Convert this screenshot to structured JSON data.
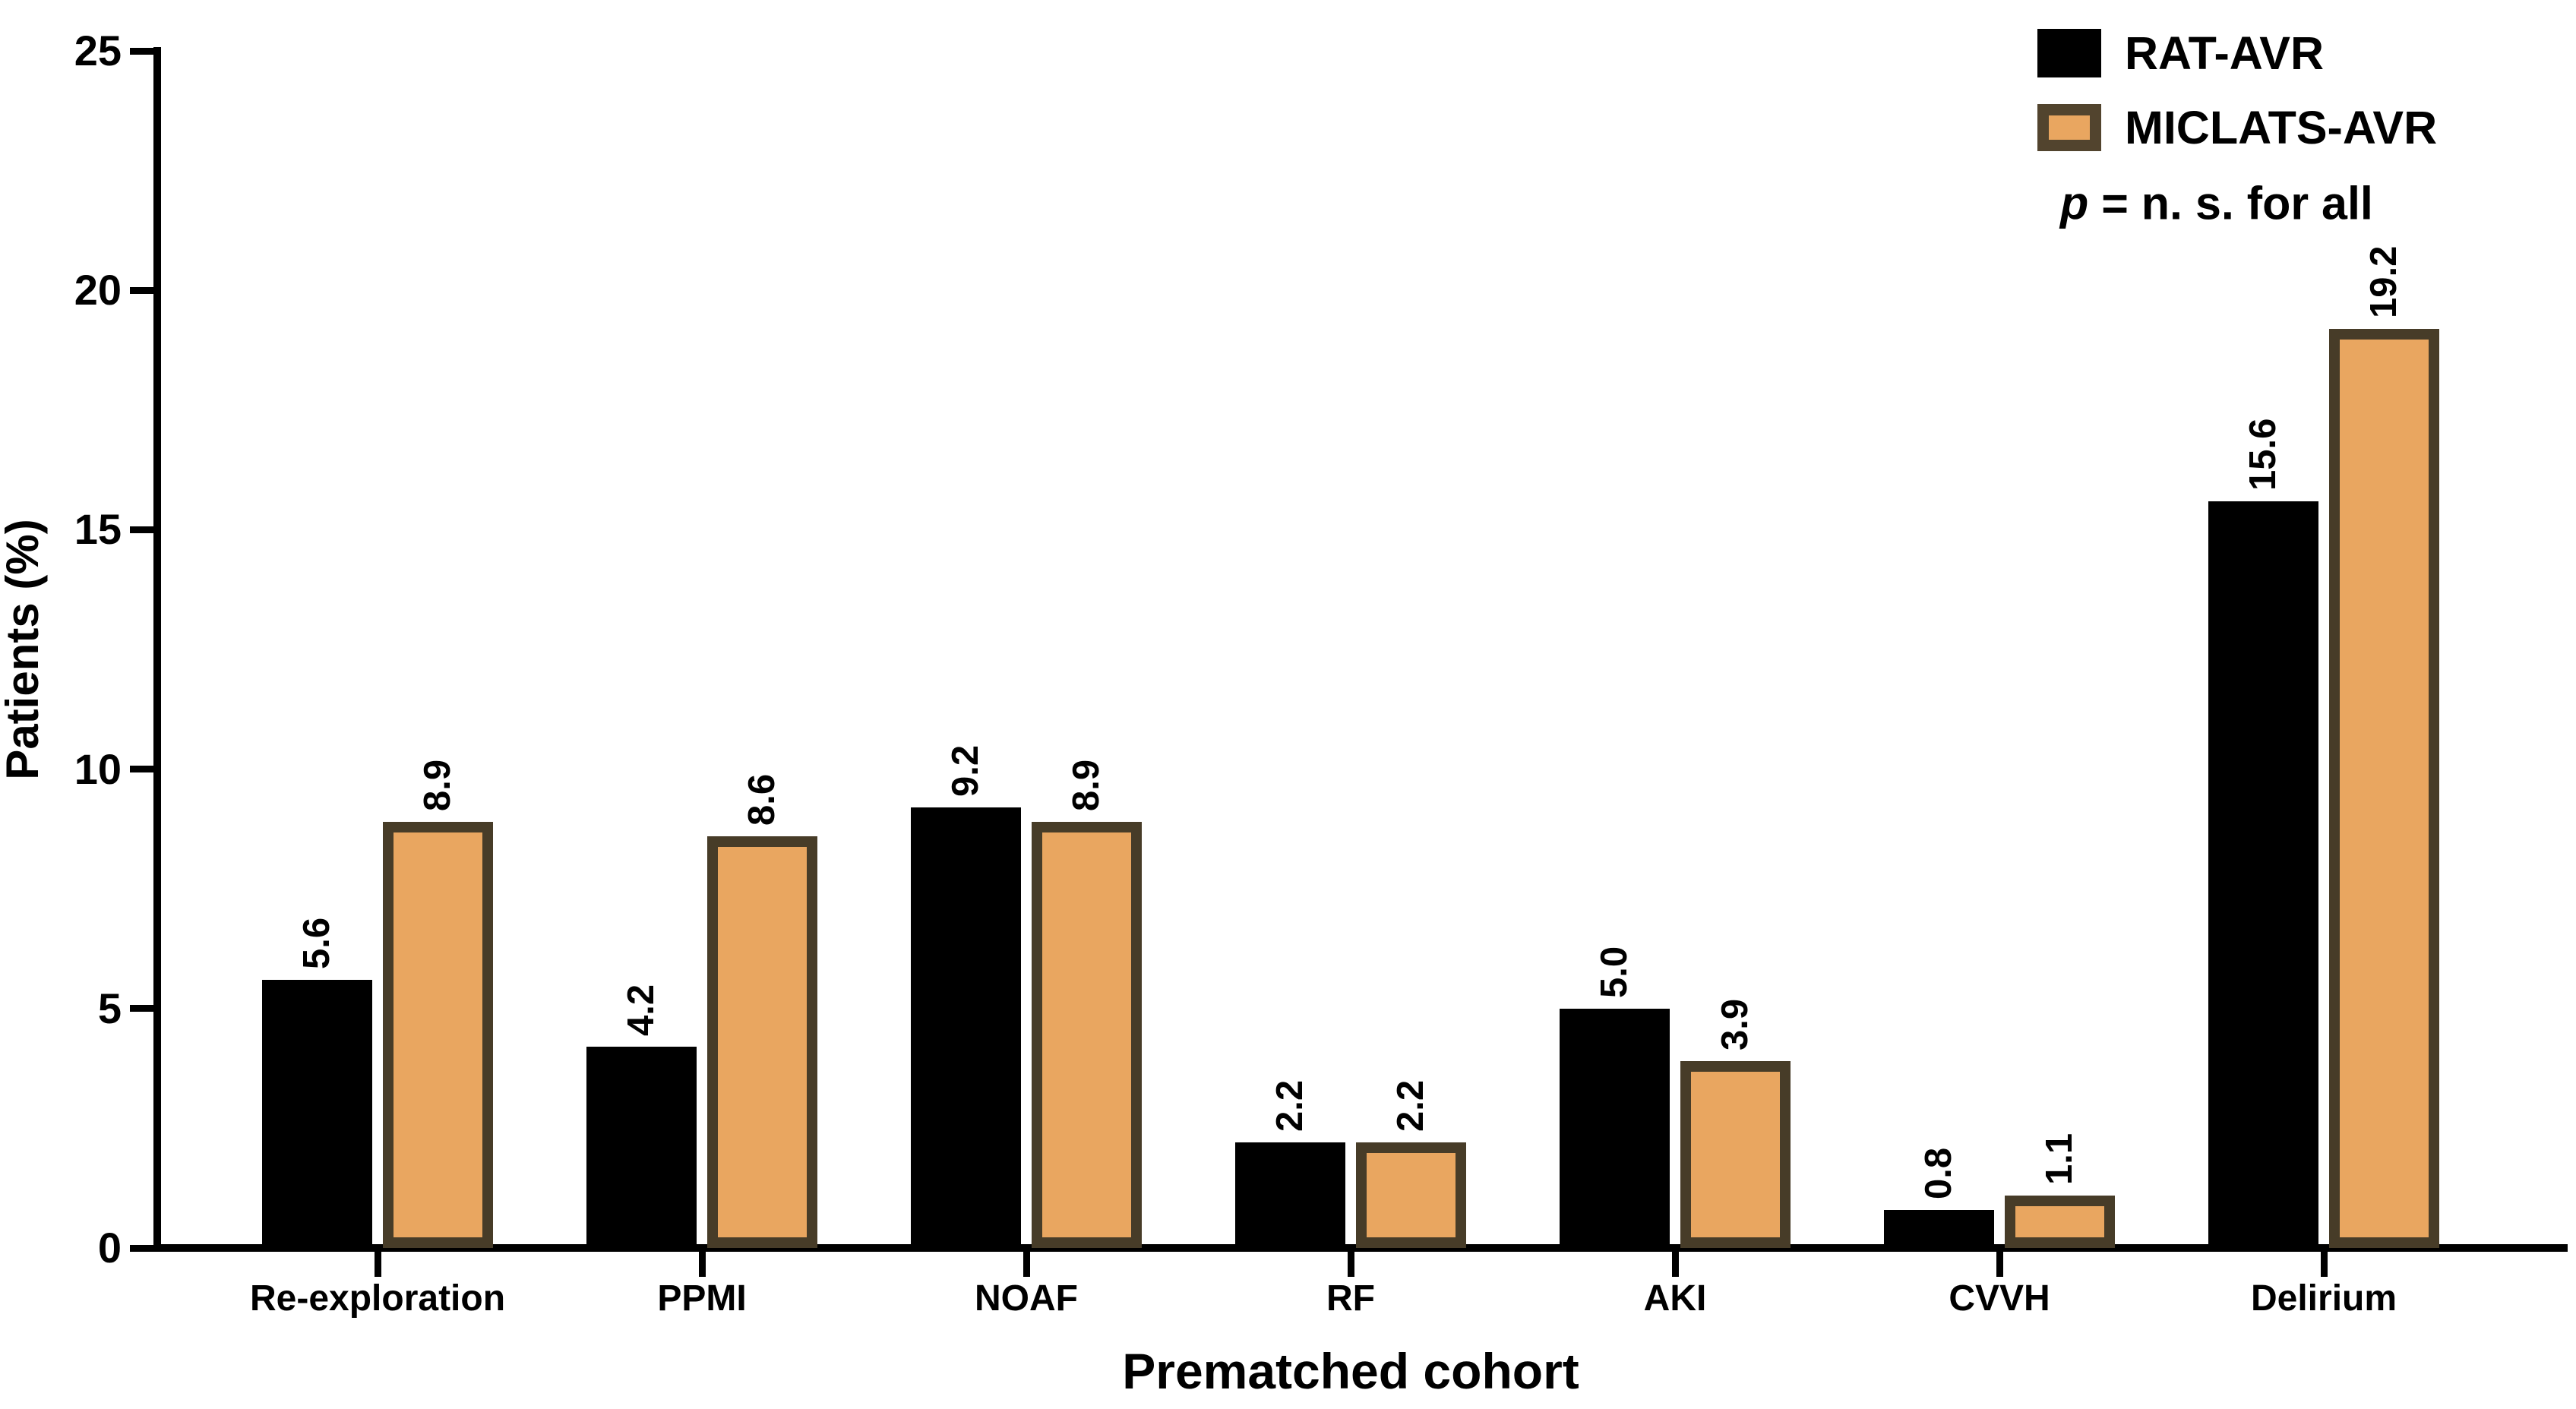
{
  "chart_data": {
    "type": "bar",
    "title": "",
    "xlabel": "Prematched cohort",
    "ylabel": "Patients (%)",
    "categories": [
      "Re-exploration",
      "PPMI",
      "NOAF",
      "RF",
      "AKI",
      "CVVH",
      "Delirium"
    ],
    "series": [
      {
        "name": "RAT-AVR",
        "color": "#000000",
        "values": [
          5.6,
          4.2,
          9.2,
          2.2,
          5.0,
          0.8,
          15.6
        ]
      },
      {
        "name": "MICLATS-AVR",
        "color": "#E9A660",
        "border_color": "#473C28",
        "values": [
          8.9,
          8.6,
          8.9,
          2.2,
          3.9,
          1.1,
          19.2
        ]
      }
    ],
    "value_labels": [
      [
        "5.6",
        "4.2",
        "9.2",
        "2.2",
        "5.0",
        "0.8",
        "15.6"
      ],
      [
        "8.9",
        "8.6",
        "8.9",
        "2.2",
        "3.9",
        "1.1",
        "19.2"
      ]
    ],
    "value_label_rotation_deg": -90,
    "ylim": [
      0,
      25
    ],
    "yticks": [
      0,
      5,
      10,
      15,
      20,
      25
    ],
    "grid": false,
    "legend_position": "top-right",
    "annotation": "p = n. s. for all"
  },
  "legend": {
    "series1_label": "RAT-AVR",
    "series2_label": "MICLATS-AVR",
    "p_italic": "p",
    "p_rest": " = n. s. for all"
  },
  "colors": {
    "background": "#FFFFFF",
    "axis": "#000000",
    "bar_black": "#000000",
    "bar_orange_fill": "#E9A660",
    "bar_orange_border": "#473C28",
    "text": "#000000"
  }
}
